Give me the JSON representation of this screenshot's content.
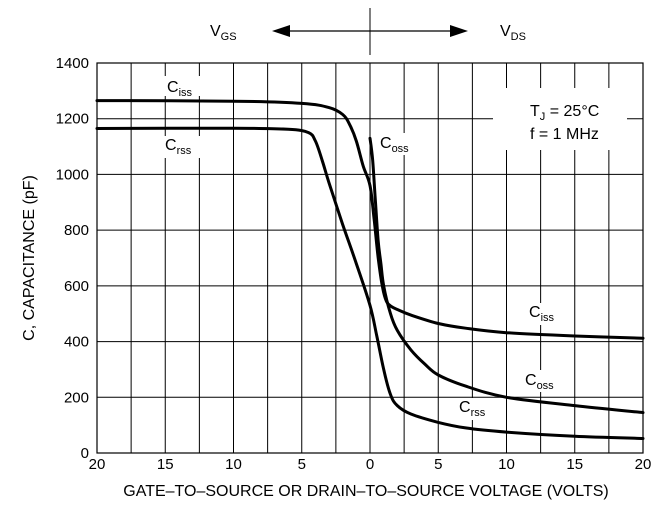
{
  "chart_data": {
    "type": "line",
    "xlabel": "GATE–TO–SOURCE OR DRAIN–TO–SOURCE VOLTAGE (VOLTS)",
    "ylabel": "C, CAPACITANCE (pF)",
    "x_tick_labels": [
      "20",
      "15",
      "10",
      "5",
      "0",
      "5",
      "10",
      "15",
      "20"
    ],
    "y_tick_labels": [
      "0",
      "200",
      "400",
      "600",
      "800",
      "1000",
      "1200",
      "1400"
    ],
    "xlim": [
      -20,
      20
    ],
    "ylim": [
      0,
      1400
    ],
    "grid": true,
    "region_labels": {
      "left": {
        "main": "V",
        "sub": "GS"
      },
      "right": {
        "main": "V",
        "sub": "DS"
      }
    },
    "conditions": [
      {
        "main": "T",
        "sub": "J",
        "rest": " = 25°C"
      },
      {
        "text": "f = 1 MHz"
      }
    ],
    "series": [
      {
        "name": "Ciss",
        "label_main": "C",
        "label_sub": "iss",
        "x": [
          -20,
          -10,
          -5,
          -3,
          -2,
          -1.5,
          -1,
          -0.5,
          0,
          0.3,
          0.6,
          0.9,
          1.2,
          1.6,
          2,
          3,
          5,
          7,
          10,
          15,
          20
        ],
        "y": [
          1265,
          1263,
          1255,
          1240,
          1215,
          1180,
          1120,
          1030,
          960,
          840,
          700,
          600,
          545,
          525,
          515,
          495,
          465,
          448,
          432,
          420,
          412
        ]
      },
      {
        "name": "Crss",
        "label_main": "C",
        "label_sub": "rss",
        "x": [
          -20,
          -10,
          -6,
          -4.5,
          -4,
          -3.5,
          -3,
          -2,
          -1,
          0,
          0.5,
          1,
          1.5,
          2,
          3,
          5,
          7,
          10,
          15,
          20
        ],
        "y": [
          1165,
          1166,
          1162,
          1150,
          1120,
          1050,
          970,
          820,
          680,
          530,
          420,
          300,
          210,
          170,
          140,
          110,
          90,
          75,
          60,
          52
        ]
      },
      {
        "name": "Coss",
        "label_main": "C",
        "label_sub": "oss",
        "x": [
          0,
          0.2,
          0.4,
          0.6,
          0.8,
          1,
          1.5,
          2,
          3,
          4,
          5,
          7,
          10,
          15,
          20
        ],
        "y": [
          1130,
          1050,
          900,
          760,
          680,
          600,
          500,
          440,
          370,
          320,
          280,
          240,
          200,
          170,
          145
        ]
      }
    ]
  }
}
